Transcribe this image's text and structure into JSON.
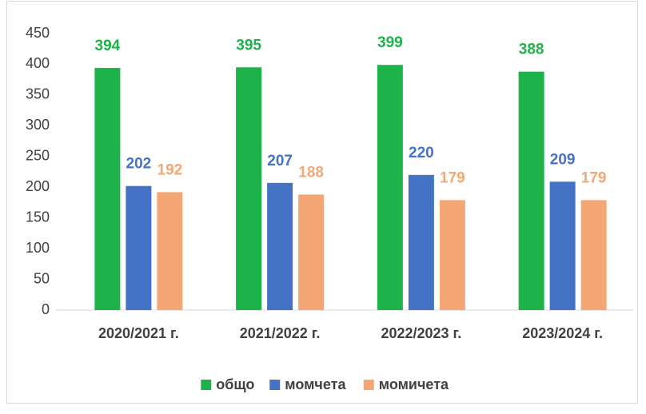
{
  "chart_data": {
    "type": "bar",
    "categories": [
      "2020/2021 г.",
      "2021/2022 г.",
      "2022/2023 г.",
      "2023/2024 г."
    ],
    "series": [
      {
        "name": "общо",
        "color": "#1eb24b",
        "values": [
          394,
          395,
          399,
          388
        ]
      },
      {
        "name": "момчета",
        "color": "#4472c4",
        "values": [
          202,
          207,
          220,
          209
        ]
      },
      {
        "name": "момичета",
        "color": "#f4a774",
        "values": [
          192,
          188,
          179,
          179
        ]
      }
    ],
    "ylim": [
      0,
      450
    ],
    "yticks": [
      0,
      50,
      100,
      150,
      200,
      250,
      300,
      350,
      400,
      450
    ],
    "grid": false,
    "legend": "bottom"
  }
}
